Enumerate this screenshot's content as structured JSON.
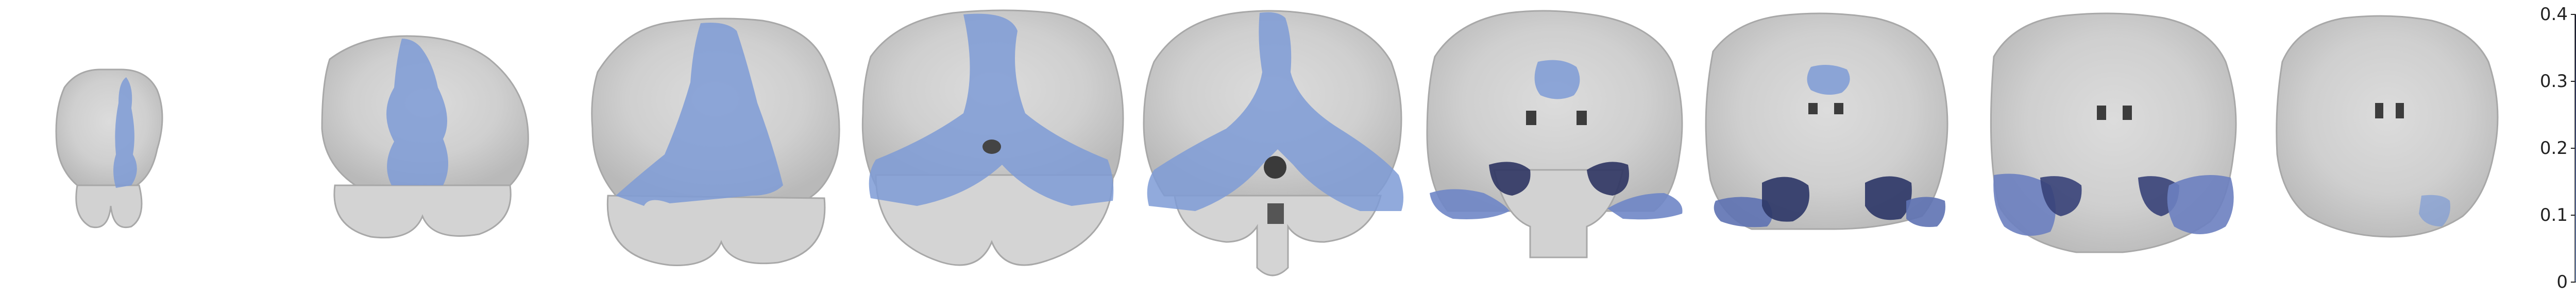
{
  "figure": {
    "type": "coronal brain slice montage with semi-transparent overlay",
    "slice_count": 9,
    "colormap": {
      "low": "#7a9ad6",
      "high": "#050a2a"
    }
  },
  "colorbar": {
    "ticks": [
      {
        "label": "0.4",
        "value": 0.4
      },
      {
        "label": "0.3",
        "value": 0.3
      },
      {
        "label": "0.2",
        "value": 0.2
      },
      {
        "label": "0.1",
        "value": 0.1
      },
      {
        "label": "0",
        "value": 0.0
      }
    ]
  },
  "slices": [
    {
      "name": "slice-1",
      "overlay_level": 0.05
    },
    {
      "name": "slice-2",
      "overlay_level": 0.05
    },
    {
      "name": "slice-3",
      "overlay_level": 0.05
    },
    {
      "name": "slice-4",
      "overlay_level": 0.06
    },
    {
      "name": "slice-5",
      "overlay_level": 0.08
    },
    {
      "name": "slice-6",
      "overlay_level": 0.15
    },
    {
      "name": "slice-7",
      "overlay_level": 0.18
    },
    {
      "name": "slice-8",
      "overlay_level": 0.18
    },
    {
      "name": "slice-9",
      "overlay_level": 0.1
    }
  ]
}
